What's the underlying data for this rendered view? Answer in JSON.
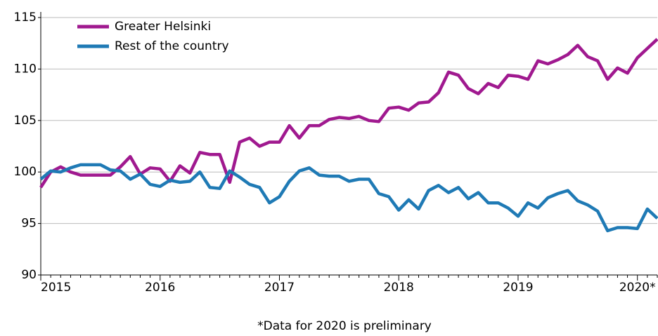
{
  "chart_data": {
    "type": "line",
    "note": "*Data for 2020 is preliminary",
    "categories": [
      "2015",
      null,
      null,
      null,
      null,
      null,
      null,
      null,
      null,
      null,
      null,
      null,
      "2016",
      null,
      null,
      null,
      null,
      null,
      null,
      null,
      null,
      null,
      null,
      null,
      "2017",
      null,
      null,
      null,
      null,
      null,
      null,
      null,
      null,
      null,
      null,
      null,
      "2018",
      null,
      null,
      null,
      null,
      null,
      null,
      null,
      null,
      null,
      null,
      null,
      "2019",
      null,
      null,
      null,
      null,
      null,
      null,
      null,
      null,
      null,
      null,
      null,
      "2020*",
      null,
      null
    ],
    "series": [
      {
        "name": "Greater Helsinki",
        "color": "#a0198f",
        "values": [
          98.5,
          100.0,
          100.5,
          100.0,
          99.7,
          99.7,
          99.7,
          99.7,
          100.5,
          101.5,
          99.8,
          100.4,
          100.3,
          99.1,
          100.6,
          99.9,
          101.9,
          101.7,
          101.7,
          99.0,
          102.9,
          103.3,
          102.5,
          102.9,
          102.9,
          104.5,
          103.3,
          104.5,
          104.5,
          105.1,
          105.3,
          105.2,
          105.4,
          105.0,
          104.9,
          106.2,
          106.3,
          106.0,
          106.7,
          106.8,
          107.7,
          109.7,
          109.4,
          108.1,
          107.6,
          108.6,
          108.2,
          109.4,
          109.3,
          109.0,
          110.8,
          110.5,
          110.9,
          111.4,
          112.3,
          111.2,
          110.8,
          109.0,
          110.1,
          109.6,
          111.1,
          112.0,
          112.9
        ]
      },
      {
        "name": "Rest of the country",
        "color": "#1f7ab5",
        "values": [
          99.3,
          100.1,
          100.0,
          100.4,
          100.7,
          100.7,
          100.7,
          100.2,
          100.1,
          99.3,
          99.8,
          98.8,
          98.6,
          99.2,
          99.0,
          99.1,
          100.0,
          98.5,
          98.4,
          100.1,
          99.5,
          98.8,
          98.5,
          97.0,
          97.6,
          99.1,
          100.1,
          100.4,
          99.7,
          99.6,
          99.6,
          99.1,
          99.3,
          99.3,
          97.9,
          97.6,
          96.3,
          97.3,
          96.4,
          98.2,
          98.7,
          98.0,
          98.5,
          97.4,
          98.0,
          97.0,
          97.0,
          96.5,
          95.7,
          97.0,
          96.5,
          97.5,
          97.9,
          98.2,
          97.2,
          96.8,
          96.2,
          94.3,
          94.6,
          94.6,
          94.5,
          96.4,
          95.5
        ]
      }
    ],
    "ylim": [
      90,
      115
    ],
    "yticks": [
      90,
      95,
      100,
      105,
      110,
      115
    ],
    "grid": true,
    "legend": "top-left"
  }
}
